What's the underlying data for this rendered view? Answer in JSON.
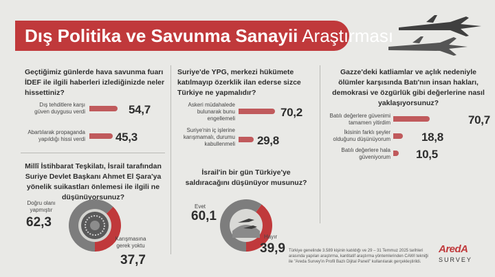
{
  "title": {
    "bold": "Dış Politika ve Savunma Sanayii",
    "light": "Araştırması"
  },
  "footnote": "Türkiye genelinde 3.589 kişinin katıldığı ve 29 – 31 Temmuz 2025 tarihleri arasında yapılan araştırma, kantitatif araştırma yöntemlerinden CAWI tekniği ile \"Areda Survey'in Profil Bazlı Dijital Paneli\" kullanılarak gerçekleştirildi.",
  "logo": {
    "brand": "AredA",
    "sub": "SURVEY"
  },
  "colors": {
    "accent": "#c0393b",
    "bar": "#c05a5c",
    "pie_grey": "#7d7d7d",
    "background": "#e9e9e6"
  },
  "chart_data": [
    {
      "type": "bar",
      "question": "Geçtiğimiz günlerde hava savunma fuarı İDEF ile ilgili haberleri izlediğinizde neler hissettiniz?",
      "categories": [
        "Dış tehditlere karşı güven duygusu verdi",
        "Abartılarak propaganda yapıldığı hissi verdi"
      ],
      "values": [
        54.7,
        45.3
      ],
      "labels": [
        "54,7",
        "45,3"
      ]
    },
    {
      "type": "bar",
      "question": "Suriye'de YPG, merkezi hükümete katılmayıp özerklik ilan ederse sizce Türkiye ne yapmalıdır?",
      "categories": [
        "Askeri müdahalede bulunarak bunu engellemeli",
        "Suriye'nin iç işlerine karışmamalı, durumu kabullenmeli"
      ],
      "values": [
        70.2,
        29.8
      ],
      "labels": [
        "70,2",
        "29,8"
      ]
    },
    {
      "type": "bar",
      "question": "Gazze'deki katliamlar ve açlık nedeniyle ölümler karşısında Batı'nın insan hakları, demokrasi ve özgürlük gibi değerlerine nasıl yaklaşıyorsunuz?",
      "categories": [
        "Batılı değerlere güvenimi tamamen yitirdim",
        "İkisinin farklı şeyler olduğunu düşünüyorum",
        "Batılı değerlere hala güveniyorum"
      ],
      "values": [
        70.7,
        18.8,
        10.5
      ],
      "labels": [
        "70,7",
        "18,8",
        "10,5"
      ]
    },
    {
      "type": "pie",
      "question": "Millî İstihbarat Teşkilatı, İsrail tarafından Suriye Devlet Başkanı Ahmet El Şara'ya yönelik suikastları önlemesi ile ilgili ne düşünüyorsunuz?",
      "categories": [
        "Doğru olanı yapmıştır",
        "Karışmasına gerek yoktu"
      ],
      "values": [
        62.3,
        37.7
      ],
      "labels": [
        "62,3",
        "37,7"
      ]
    },
    {
      "type": "pie",
      "question": "İsrail'in bir gün Türkiye'ye saldıracağını düşünüyor musunuz?",
      "categories": [
        "Evet",
        "Hayır"
      ],
      "values": [
        60.1,
        39.9
      ],
      "labels": [
        "60,1",
        "39,9"
      ]
    }
  ]
}
